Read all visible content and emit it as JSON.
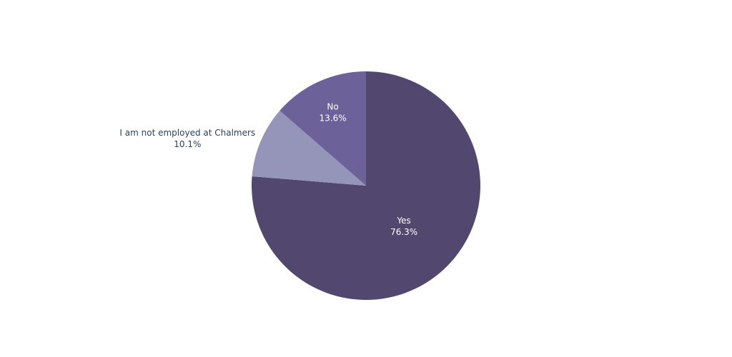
{
  "chart_data": {
    "type": "pie",
    "categories": [
      "Yes",
      "I am not employed at Chalmers",
      "No"
    ],
    "values": [
      76.3,
      10.1,
      13.6
    ],
    "value_labels": [
      "76.3%",
      "10.1%",
      "13.6%"
    ],
    "colors": [
      "#51476f",
      "#9594b9",
      "#6c6299"
    ]
  }
}
